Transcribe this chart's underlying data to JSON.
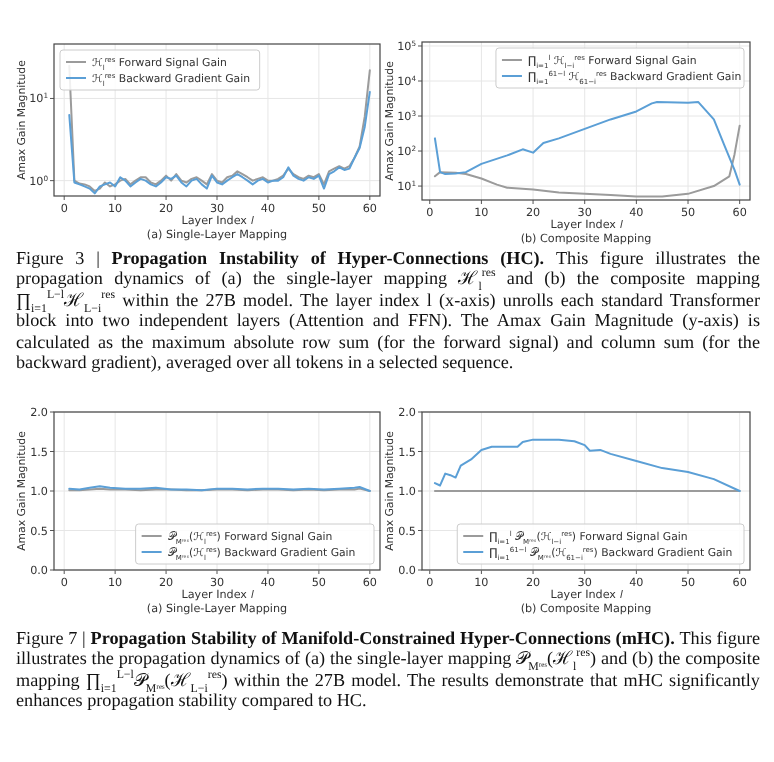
{
  "chart_data": [
    {
      "type": "line",
      "subtitle": "(a) Single-Layer Mapping",
      "xlabel": "Layer Index 𝑙",
      "ylabel": "Amax Gain Magnitude",
      "log": "y",
      "grid": true,
      "legend": "top left",
      "xlim": [
        -2,
        62
      ],
      "ylim": [
        0.65,
        46
      ],
      "xticks": [
        0,
        10,
        20,
        30,
        40,
        50,
        60
      ],
      "yticks": [
        {
          "value": 1,
          "label": "10$^{0}$"
        },
        {
          "value": 10,
          "label": "10$^{1}$"
        }
      ],
      "x": [
        1,
        2,
        3,
        4,
        5,
        6,
        7,
        8,
        9,
        10,
        11,
        12,
        13,
        14,
        15,
        16,
        17,
        18,
        19,
        20,
        21,
        22,
        23,
        24,
        25,
        26,
        27,
        28,
        29,
        30,
        31,
        32,
        33,
        34,
        35,
        36,
        37,
        38,
        39,
        40,
        41,
        42,
        43,
        44,
        45,
        46,
        47,
        48,
        49,
        50,
        51,
        52,
        53,
        54,
        55,
        56,
        57,
        58,
        59,
        60
      ],
      "series": [
        {
          "name": "ℋ$_{l}$$^{res}$ Forward Signal Gain",
          "color": "#9b9b9b",
          "values": [
            25,
            1.0,
            0.92,
            0.9,
            0.85,
            0.75,
            0.8,
            0.95,
            0.85,
            0.9,
            1.0,
            1.05,
            0.9,
            1.0,
            1.1,
            1.1,
            0.95,
            0.9,
            1.0,
            1.15,
            1.0,
            1.2,
            1.0,
            0.95,
            1.05,
            1.1,
            1.0,
            0.9,
            1.2,
            1.0,
            0.95,
            1.1,
            1.15,
            1.3,
            1.2,
            1.1,
            1.0,
            1.05,
            1.1,
            1.0,
            1.0,
            1.05,
            1.15,
            1.4,
            1.2,
            1.1,
            1.05,
            1.15,
            1.1,
            1.2,
            0.9,
            1.3,
            1.4,
            1.5,
            1.4,
            1.5,
            1.9,
            2.6,
            6,
            22
          ]
        },
        {
          "name": "ℋ$_{l}$$^{res}$ Backward Gradient Gain",
          "color": "#5b9fd6",
          "values": [
            6.3,
            0.95,
            0.9,
            0.85,
            0.8,
            0.7,
            0.85,
            0.9,
            0.95,
            0.85,
            1.1,
            1.0,
            0.85,
            0.95,
            1.05,
            1.0,
            0.9,
            0.85,
            0.95,
            1.1,
            1.05,
            1.15,
            0.95,
            0.85,
            1.0,
            1.05,
            0.9,
            0.8,
            1.15,
            0.95,
            0.9,
            1.0,
            1.1,
            1.2,
            1.1,
            1.0,
            0.9,
            1.0,
            1.05,
            0.95,
            1.0,
            1.0,
            1.1,
            1.45,
            1.15,
            1.05,
            1.0,
            1.1,
            1.05,
            1.15,
            0.8,
            1.2,
            1.3,
            1.45,
            1.35,
            1.4,
            1.9,
            2.5,
            4.5,
            12
          ]
        }
      ]
    },
    {
      "type": "line",
      "subtitle": "(b) Composite Mapping",
      "xlabel": "Layer Index 𝑙",
      "ylabel": "Amax Gain Magnitude",
      "log": "y",
      "grid": true,
      "legend": "top right",
      "xlim": [
        -1.5,
        62
      ],
      "ylim": [
        4,
        130000
      ],
      "xticks": [
        0,
        10,
        20,
        30,
        40,
        50,
        60
      ],
      "yticks": [
        {
          "value": 10,
          "label": "10$^{1}$"
        },
        {
          "value": 100,
          "label": "10$^{2}$"
        },
        {
          "value": 1000,
          "label": "10$^{3}$"
        },
        {
          "value": 10000,
          "label": "10$^{4}$"
        },
        {
          "value": 100000,
          "label": "10$^{5}$"
        }
      ],
      "series": [
        {
          "name": "∏$_{i=1}$$^{l}$ ℋ$_{l−i}$$^{res}$ Forward Signal Gain",
          "color": "#9b9b9b",
          "x": [
            1,
            2,
            5,
            7,
            10,
            13,
            15,
            20,
            25,
            30,
            35,
            40,
            45,
            50,
            55,
            58,
            59,
            60
          ],
          "values": [
            19,
            25,
            24,
            22,
            16.5,
            11,
            9,
            8,
            6.6,
            6,
            5.6,
            5,
            5,
            6,
            10,
            19,
            80,
            530
          ]
        },
        {
          "name": "∏$_{i=1}$$^{61−l}$ ℋ$_{61−i}$$^{res}$ Backward Gradient Gain",
          "color": "#5b9fd6",
          "x": [
            1,
            2,
            3,
            5,
            7,
            10,
            15,
            18,
            20,
            22,
            25,
            30,
            35,
            40,
            43,
            44,
            50,
            52,
            55,
            57,
            59,
            60
          ],
          "values": [
            230,
            25,
            22,
            23,
            25,
            43,
            75,
            112,
            90,
            170,
            230,
            430,
            800,
            1350,
            2300,
            2500,
            2400,
            2500,
            800,
            150,
            29,
            11
          ]
        }
      ],
      "annotations": [
        "Figure 3 | ",
        "Propagation Instability of Hyper-Connections (HC).",
        "This figure illustrates the propagation dynamics of (a) the single-layer mapping ℋ$_{l}$$^{res}$ and (b) the composite mapping ∏$_{i=1}$$^{L−l}$ℋ$_{L−i}$$^{res}$ within the 27B model. The layer index l (x-axis) unrolls each standard Transformer block into two independent layers (Attention and FFN). The Amax Gain Magnitude (y-axis) is calculated as the maximum absolute row sum (for the forward signal) and column sum (for the backward gradient), averaged over all tokens in a selected sequence."
      ]
    },
    {
      "type": "line",
      "subtitle": "(a) Single-Layer Mapping",
      "xlabel": "Layer Index 𝑙",
      "ylabel": "Amax Gain Magnitude",
      "grid": true,
      "legend": "bottom right",
      "xlim": [
        -2,
        62
      ],
      "ylim": [
        0,
        2
      ],
      "xticks": [
        0,
        10,
        20,
        30,
        40,
        50,
        60
      ],
      "yticks": [
        {
          "value": 0,
          "label": "0.0"
        },
        {
          "value": 0.5,
          "label": "0.5"
        },
        {
          "value": 1,
          "label": "1.0"
        },
        {
          "value": 1.5,
          "label": "1.5"
        },
        {
          "value": 2,
          "label": "2.0"
        }
      ],
      "x": [
        1,
        3,
        5,
        7,
        9,
        12,
        15,
        18,
        21,
        24,
        27,
        30,
        33,
        36,
        39,
        42,
        45,
        48,
        51,
        54,
        57,
        58,
        60
      ],
      "series": [
        {
          "name": "𝒫$_{Mʳᵉˢ}$(ℋ$_{l}$$^{res}$) Forward Signal Gain",
          "color": "#9b9b9b",
          "values": [
            1.01,
            1.01,
            1.02,
            1.03,
            1.02,
            1.02,
            1.01,
            1.02,
            1.02,
            1.01,
            1.01,
            1.02,
            1.02,
            1.01,
            1.02,
            1.02,
            1.01,
            1.02,
            1.01,
            1.02,
            1.02,
            1.03,
            1.0
          ]
        },
        {
          "name": "𝒫$_{Mʳᵉˢ}$(ℋ$_{l}$$^{res}$) Backward Gradient Gain",
          "color": "#5b9fd6",
          "values": [
            1.03,
            1.02,
            1.04,
            1.06,
            1.04,
            1.03,
            1.03,
            1.04,
            1.02,
            1.02,
            1.01,
            1.03,
            1.03,
            1.02,
            1.03,
            1.03,
            1.02,
            1.03,
            1.02,
            1.03,
            1.04,
            1.05,
            1.0
          ]
        }
      ]
    },
    {
      "type": "line",
      "subtitle": "(b) Composite Mapping",
      "xlabel": "Layer Index 𝑙",
      "ylabel": "Amax Gain Magnitude",
      "grid": true,
      "legend": "bottom right",
      "xlim": [
        -1.5,
        62
      ],
      "ylim": [
        0,
        2
      ],
      "xticks": [
        0,
        10,
        20,
        30,
        40,
        50,
        60
      ],
      "yticks": [
        {
          "value": 0,
          "label": "0.0"
        },
        {
          "value": 0.5,
          "label": "0.5"
        },
        {
          "value": 1,
          "label": "1.0"
        },
        {
          "value": 1.5,
          "label": "1.5"
        },
        {
          "value": 2,
          "label": "2.0"
        }
      ],
      "series": [
        {
          "name": "∏$_{i=1}$$^{l}$ 𝒫$_{Mʳᵉˢ}$(ℋ$_{l−i}$$^{res}$) Forward Signal Gain",
          "color": "#9b9b9b",
          "x": [
            1,
            60
          ],
          "values": [
            1.0,
            1.0
          ]
        },
        {
          "name": "∏$_{i=1}$$^{61−l}$ 𝒫$_{Mʳᵉˢ}$(ℋ$_{61−i}$$^{res}$) Backward Gradient Gain",
          "color": "#5b9fd6",
          "x": [
            1,
            2,
            3,
            4,
            5,
            6,
            8,
            10,
            12,
            17,
            18,
            20,
            25,
            28,
            30,
            31,
            33,
            35,
            40,
            45,
            50,
            55,
            60
          ],
          "values": [
            1.1,
            1.07,
            1.22,
            1.2,
            1.17,
            1.32,
            1.4,
            1.52,
            1.56,
            1.56,
            1.62,
            1.65,
            1.65,
            1.63,
            1.58,
            1.51,
            1.52,
            1.47,
            1.38,
            1.29,
            1.24,
            1.15,
            1.0
          ]
        }
      ],
      "annotations": [
        "Figure 7 | ",
        "Propagation Stability of Manifold-Constrained Hyper-Connections (mHC).",
        "This figure illustrates the propagation dynamics of (a) the single-layer mapping 𝒫$_{Mʳᵉˢ}$(ℋ$_{l}$$^{res}$) and (b) the composite mapping ∏$_{i=1}$$^{L−l}$𝒫$_{Mʳᵉˢ}$(ℋ$_{L−i}$$^{res}$) within the 27B model. The results demonstrate that mHC significantly enhances propagation stability compared to HC."
      ]
    }
  ]
}
